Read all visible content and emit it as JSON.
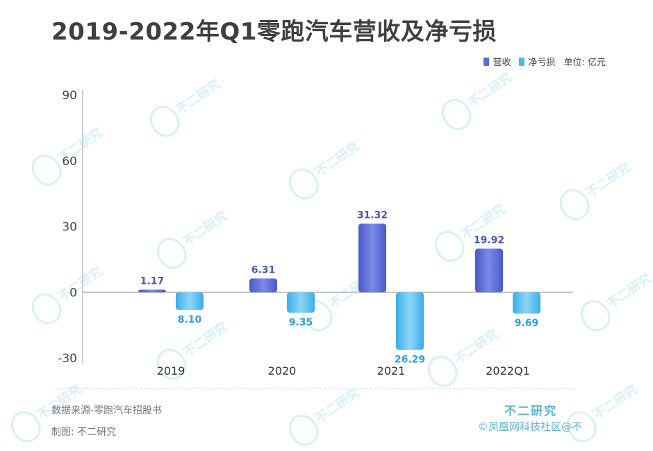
{
  "title": "2019-2022年Q1零跑汽车营收及净亏损",
  "legend": {
    "revenue": "营收",
    "loss": "净亏损",
    "unit": "单位: 亿元"
  },
  "colors": {
    "revenue": "#5a6ad6",
    "loss": "#4cb8ee",
    "revenue_label": "#4756b8",
    "loss_label": "#2d9fd8",
    "axis": "#bdbdbd"
  },
  "chart_data": {
    "type": "bar",
    "categories": [
      "2019",
      "2020",
      "2021",
      "2022Q1"
    ],
    "series": [
      {
        "name": "营收",
        "values": [
          1.17,
          6.31,
          31.32,
          19.92
        ],
        "labels": [
          "1.17",
          "6.31",
          "31.32",
          "19.92"
        ]
      },
      {
        "name": "净亏损",
        "values": [
          -8.1,
          -9.35,
          -26.29,
          -9.69
        ],
        "labels": [
          "8.10",
          "9.35",
          "26.29",
          "9.69"
        ]
      }
    ],
    "yticks": [
      "90",
      "60",
      "30",
      "0",
      "-30"
    ],
    "ylim": [
      -30,
      90
    ],
    "title": "2019-2022年Q1零跑汽车营收及净亏损",
    "xlabel": "",
    "ylabel": "单位: 亿元",
    "legend_position": "top-right"
  },
  "footer": {
    "source": "数据来源-零跑汽车招股书",
    "author": "制图: 不二研究"
  },
  "brand": {
    "name": "不二研究",
    "sub": "©凤凰网科技社区@不"
  },
  "watermark": "不二研究"
}
